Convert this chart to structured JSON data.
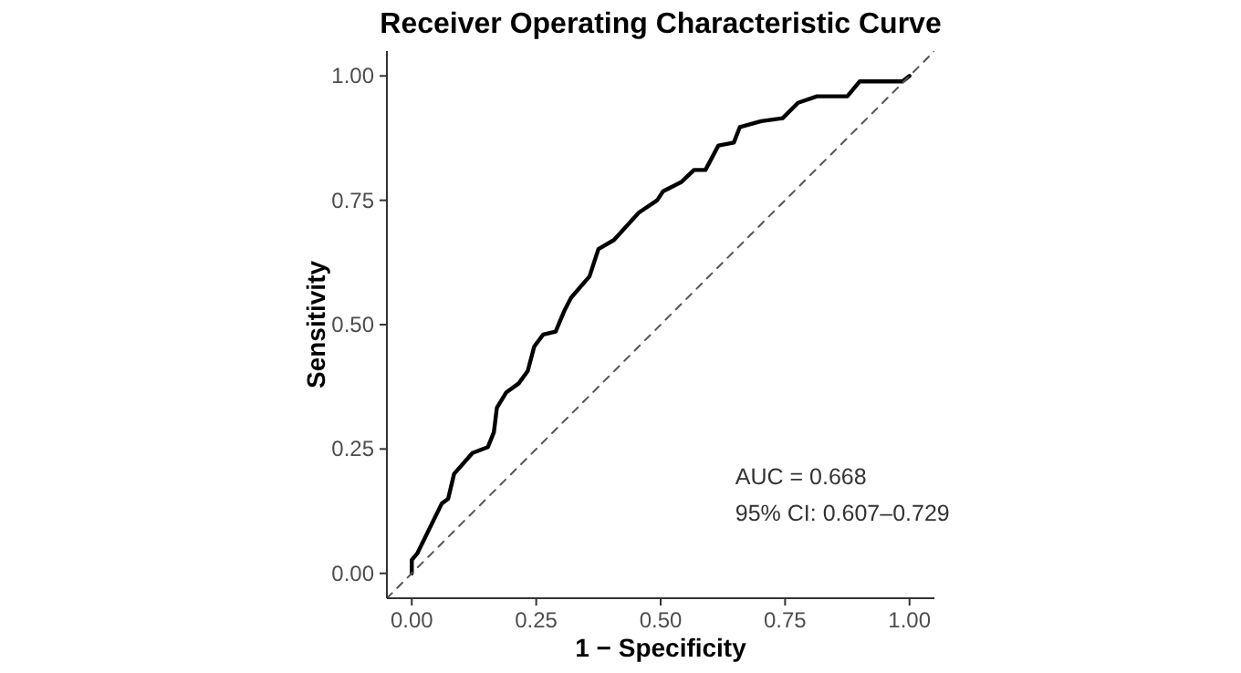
{
  "chart_data": {
    "type": "line",
    "title": "Receiver Operating Characteristic Curve",
    "xlabel": "1 − Specificity",
    "ylabel": "Sensitivity",
    "xlim": [
      -0.05,
      1.05
    ],
    "ylim": [
      -0.05,
      1.05
    ],
    "xticks": [
      {
        "value": 0,
        "label": "0.00"
      },
      {
        "value": 0.25,
        "label": "0.25"
      },
      {
        "value": 0.5,
        "label": "0.50"
      },
      {
        "value": 0.75,
        "label": "0.75"
      },
      {
        "value": 1,
        "label": "1.00"
      }
    ],
    "yticks": [
      {
        "value": 0,
        "label": "0.00"
      },
      {
        "value": 0.25,
        "label": "0.25"
      },
      {
        "value": 0.5,
        "label": "0.50"
      },
      {
        "value": 0.75,
        "label": "0.75"
      },
      {
        "value": 1,
        "label": "1.00"
      }
    ],
    "grid": false,
    "marker": "none",
    "series": [
      {
        "color": "#000000",
        "line_style": "solid",
        "x": [
          0,
          0,
          0.011,
          0.06,
          0.073,
          0.085,
          0.122,
          0.153,
          0.165,
          0.171,
          0.19,
          0.215,
          0.233,
          0.246,
          0.264,
          0.289,
          0.307,
          0.32,
          0.357,
          0.375,
          0.406,
          0.456,
          0.493,
          0.505,
          0.542,
          0.567,
          0.59,
          0.616,
          0.647,
          0.659,
          0.702,
          0.745,
          0.776,
          0.814,
          0.875,
          0.9,
          0.986,
          1
        ],
        "values": [
          0,
          0.027,
          0.04,
          0.14,
          0.15,
          0.2,
          0.242,
          0.254,
          0.284,
          0.333,
          0.364,
          0.382,
          0.407,
          0.456,
          0.48,
          0.486,
          0.529,
          0.554,
          0.597,
          0.652,
          0.67,
          0.725,
          0.75,
          0.768,
          0.787,
          0.811,
          0.811,
          0.86,
          0.866,
          0.897,
          0.909,
          0.915,
          0.946,
          0.959,
          0.959,
          0.989,
          0.989,
          1
        ]
      },
      {
        "color": "#555555",
        "line_style": "dashed",
        "x": [
          -0.05,
          1.05
        ],
        "values": [
          -0.05,
          1.05
        ]
      }
    ],
    "annotations": [
      "AUC = 0.668",
      "95% CI: 0.607–0.729"
    ]
  }
}
